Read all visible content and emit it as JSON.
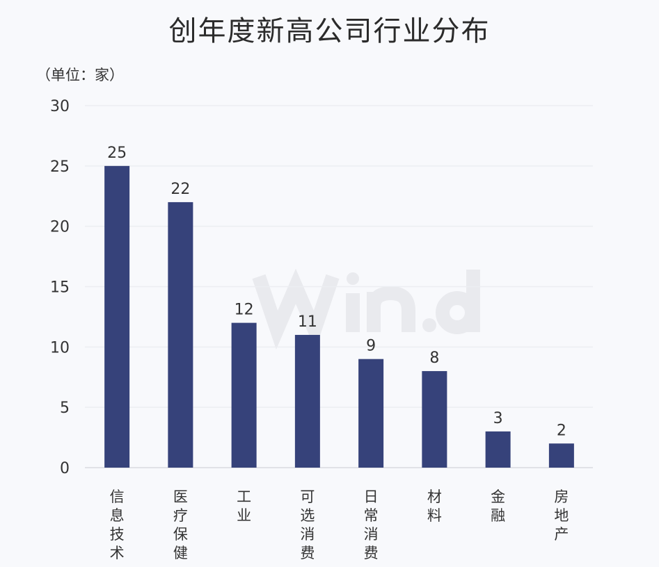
{
  "chart_data": {
    "type": "bar",
    "title": "创年度新高公司行业分布",
    "unit_label": "（单位：家）",
    "categories": [
      "信息技术",
      "医疗保健",
      "工业",
      "可选消费",
      "日常消费",
      "材料",
      "金融",
      "房地产"
    ],
    "values": [
      25,
      22,
      12,
      11,
      9,
      8,
      3,
      2
    ],
    "ylim": [
      0,
      30
    ],
    "yticks": [
      0,
      5,
      10,
      15,
      20,
      25,
      30
    ],
    "grid": true,
    "bar_color": "#36427a",
    "watermark": "Win.d"
  }
}
